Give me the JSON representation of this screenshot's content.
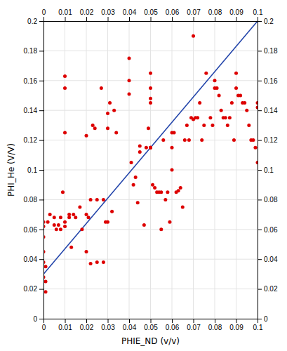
{
  "chart_data": {
    "type": "scatter",
    "xlabel": "PHIE_ND (v/v)",
    "ylabel": "PHI_He (V/V)",
    "xlim": [
      0,
      0.1
    ],
    "ylim": [
      0,
      0.2
    ],
    "xticks": [
      0,
      0.01,
      0.02,
      0.03,
      0.04,
      0.05,
      0.06,
      0.07,
      0.08,
      0.09,
      0.1
    ],
    "yticks": [
      0,
      0.02,
      0.04,
      0.06,
      0.08,
      0.1,
      0.12,
      0.14,
      0.16,
      0.18,
      0.2
    ],
    "grid": true,
    "series": [
      {
        "type": "scatter",
        "color": "#dd0000",
        "x": [
          0.0,
          0.0,
          0.0,
          0.0,
          0.0,
          0.0,
          0.001,
          0.001,
          0.001,
          0.002,
          0.003,
          0.005,
          0.005,
          0.006,
          0.007,
          0.008,
          0.008,
          0.009,
          0.01,
          0.01,
          0.01,
          0.01,
          0.01,
          0.012,
          0.012,
          0.013,
          0.014,
          0.015,
          0.017,
          0.018,
          0.02,
          0.02,
          0.02,
          0.021,
          0.022,
          0.022,
          0.023,
          0.024,
          0.025,
          0.025,
          0.027,
          0.028,
          0.028,
          0.029,
          0.03,
          0.03,
          0.03,
          0.031,
          0.032,
          0.033,
          0.034,
          0.04,
          0.04,
          0.04,
          0.041,
          0.042,
          0.043,
          0.044,
          0.045,
          0.045,
          0.047,
          0.048,
          0.049,
          0.05,
          0.05,
          0.05,
          0.05,
          0.05,
          0.05,
          0.05,
          0.051,
          0.052,
          0.053,
          0.054,
          0.055,
          0.055,
          0.056,
          0.057,
          0.058,
          0.059,
          0.06,
          0.06,
          0.06,
          0.061,
          0.062,
          0.063,
          0.064,
          0.065,
          0.066,
          0.067,
          0.068,
          0.069,
          0.07,
          0.07,
          0.071,
          0.072,
          0.073,
          0.074,
          0.075,
          0.076,
          0.078,
          0.079,
          0.08,
          0.08,
          0.081,
          0.082,
          0.083,
          0.084,
          0.085,
          0.086,
          0.087,
          0.088,
          0.089,
          0.09,
          0.09,
          0.091,
          0.092,
          0.093,
          0.094,
          0.095,
          0.096,
          0.097,
          0.098,
          0.099,
          0.1,
          0.1,
          0.1
        ],
        "values": [
          0.065,
          0.062,
          0.055,
          0.045,
          0.038,
          0.028,
          0.035,
          0.025,
          0.018,
          0.065,
          0.07,
          0.068,
          0.063,
          0.06,
          0.063,
          0.068,
          0.06,
          0.085,
          0.163,
          0.155,
          0.125,
          0.065,
          0.062,
          0.07,
          0.068,
          0.048,
          0.07,
          0.068,
          0.075,
          0.06,
          0.123,
          0.07,
          0.045,
          0.068,
          0.037,
          0.08,
          0.13,
          0.128,
          0.08,
          0.038,
          0.155,
          0.08,
          0.038,
          0.065,
          0.138,
          0.128,
          0.065,
          0.145,
          0.072,
          0.14,
          0.125,
          0.175,
          0.16,
          0.151,
          0.105,
          0.09,
          0.095,
          0.078,
          0.112,
          0.116,
          0.063,
          0.115,
          0.128,
          0.165,
          0.155,
          0.148,
          0.145,
          0.115,
          0.115,
          0.115,
          0.09,
          0.088,
          0.085,
          0.085,
          0.085,
          0.06,
          0.12,
          0.08,
          0.085,
          0.065,
          0.125,
          0.115,
          0.1,
          0.125,
          0.085,
          0.086,
          0.088,
          0.075,
          0.12,
          0.13,
          0.12,
          0.135,
          0.19,
          0.134,
          0.135,
          0.135,
          0.145,
          0.12,
          0.13,
          0.165,
          0.135,
          0.13,
          0.16,
          0.155,
          0.155,
          0.15,
          0.14,
          0.135,
          0.135,
          0.13,
          0.135,
          0.145,
          0.12,
          0.165,
          0.155,
          0.15,
          0.15,
          0.145,
          0.145,
          0.14,
          0.13,
          0.12,
          0.12,
          0.115,
          0.145,
          0.142,
          0.105
        ]
      },
      {
        "type": "line",
        "color": "#2244aa",
        "x": [
          0.0,
          0.1
        ],
        "values": [
          0.03,
          0.2
        ]
      }
    ]
  }
}
